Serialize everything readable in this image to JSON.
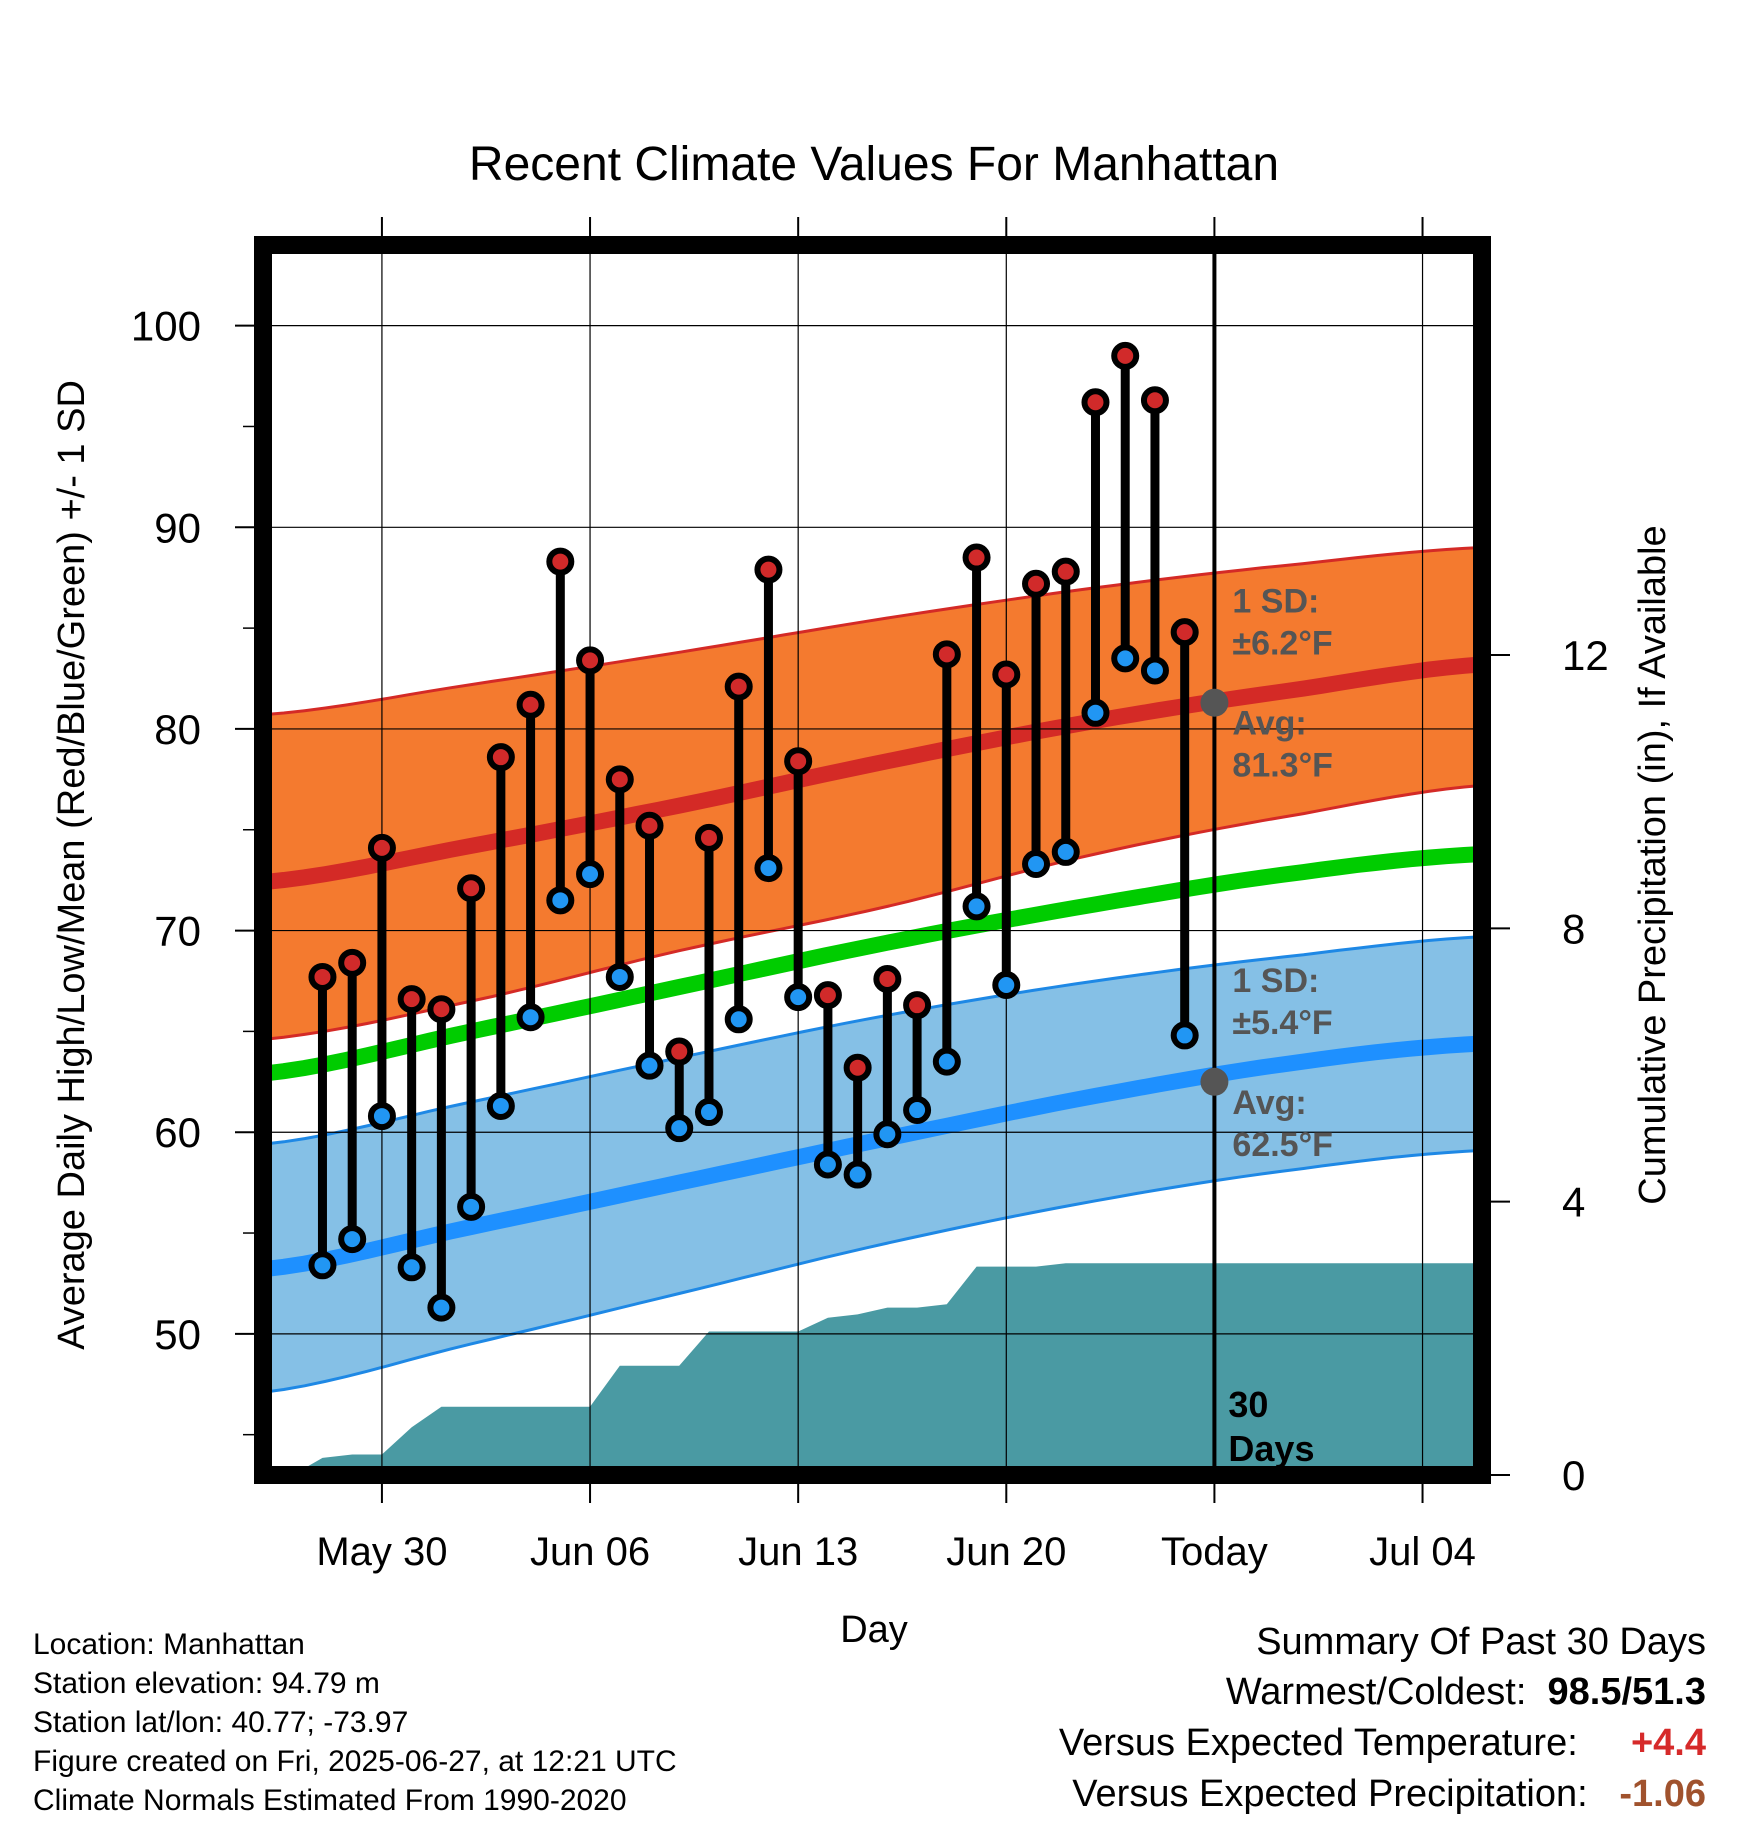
{
  "chart_data": {
    "type": "line",
    "title": "Recent Climate Values For Manhattan",
    "xlabel": "Day",
    "ylabel": "Average Daily High/Low/Mean (Red/Blue/Green) +/- 1 SD",
    "y2label": "Cumulative Precipitation (in), If Available",
    "ylim": [
      43,
      104
    ],
    "y_ticks": [
      50,
      60,
      70,
      80,
      90,
      100
    ],
    "y2lim": [
      0,
      18
    ],
    "y2_ticks": [
      0,
      4,
      8,
      12
    ],
    "xlim": [
      "2025-05-26",
      "2025-07-06"
    ],
    "x_ticks": [
      {
        "date": "2025-05-30",
        "label": "May 30"
      },
      {
        "date": "2025-06-06",
        "label": "Jun 06"
      },
      {
        "date": "2025-06-13",
        "label": "Jun 13"
      },
      {
        "date": "2025-06-20",
        "label": "Jun 20"
      },
      {
        "date": "2025-06-27",
        "label": "Today"
      },
      {
        "date": "2025-07-04",
        "label": "Jul 04"
      }
    ],
    "grid": true,
    "colors": {
      "high_band": "#f47a2f",
      "high_avg": "#d42a26",
      "mean": "#00cc00",
      "low_band": "#85c0e6",
      "low_avg": "#1e90ff",
      "band_edge_low": "#1e88e5",
      "precip": "#4a9aa3",
      "high_dot": "#d12a2a",
      "low_dot": "#2196f3",
      "today_dot": "#555555",
      "annot_text": "#555555",
      "plus_color": "#d62a2a",
      "minus_color": "#a0522d"
    },
    "dates": [
      "2025-05-28",
      "2025-05-29",
      "2025-05-30",
      "2025-05-31",
      "2025-06-01",
      "2025-06-02",
      "2025-06-03",
      "2025-06-04",
      "2025-06-05",
      "2025-06-06",
      "2025-06-07",
      "2025-06-08",
      "2025-06-09",
      "2025-06-10",
      "2025-06-11",
      "2025-06-12",
      "2025-06-13",
      "2025-06-14",
      "2025-06-15",
      "2025-06-16",
      "2025-06-17",
      "2025-06-18",
      "2025-06-19",
      "2025-06-20",
      "2025-06-21",
      "2025-06-22",
      "2025-06-23",
      "2025-06-24",
      "2025-06-25",
      "2025-06-26"
    ],
    "daily_high": [
      67.7,
      68.4,
      74.1,
      66.6,
      66.1,
      72.1,
      78.6,
      81.2,
      88.3,
      83.4,
      77.5,
      75.2,
      64.0,
      74.6,
      82.1,
      87.9,
      78.4,
      66.8,
      63.2,
      67.6,
      66.3,
      83.7,
      88.5,
      82.7,
      87.2,
      87.8,
      96.2,
      98.5,
      96.3,
      84.8
    ],
    "daily_low": [
      53.4,
      54.7,
      60.8,
      53.3,
      51.3,
      56.3,
      61.3,
      65.7,
      71.5,
      72.8,
      67.7,
      63.3,
      60.2,
      61.0,
      65.6,
      73.1,
      66.7,
      58.4,
      57.9,
      59.9,
      61.1,
      63.5,
      71.2,
      67.3,
      73.3,
      73.9,
      80.8,
      83.5,
      82.9,
      64.8
    ],
    "normal_band_dates": [
      "2025-05-26",
      "2025-06-02",
      "2025-06-09",
      "2025-06-16",
      "2025-06-23",
      "2025-06-30",
      "2025-07-06"
    ],
    "normal_high_avg": [
      72.4,
      74.2,
      76.2,
      78.4,
      80.4,
      82.0,
      83.2
    ],
    "normal_high_sd_upper": [
      80.7,
      82.2,
      83.8,
      85.5,
      87.0,
      88.2,
      89.0
    ],
    "normal_high_sd_lower": [
      64.6,
      66.5,
      69.0,
      71.2,
      73.8,
      75.8,
      77.2
    ],
    "normal_mean": [
      62.9,
      65.0,
      67.2,
      69.4,
      71.3,
      72.9,
      73.8
    ],
    "normal_low_avg": [
      53.2,
      55.3,
      57.5,
      59.7,
      61.8,
      63.5,
      64.4
    ],
    "normal_low_sd_upper": [
      59.4,
      61.5,
      63.7,
      65.8,
      67.5,
      68.8,
      69.7
    ],
    "normal_low_sd_lower": [
      47.1,
      49.5,
      52.0,
      54.5,
      56.6,
      58.2,
      59.1
    ],
    "precip_dates": [
      "2025-05-26",
      "2025-05-27",
      "2025-05-28",
      "2025-05-29",
      "2025-05-30",
      "2025-05-31",
      "2025-06-01",
      "2025-06-02",
      "2025-06-03",
      "2025-06-04",
      "2025-06-05",
      "2025-06-06",
      "2025-06-07",
      "2025-06-08",
      "2025-06-09",
      "2025-06-10",
      "2025-06-11",
      "2025-06-12",
      "2025-06-13",
      "2025-06-14",
      "2025-06-15",
      "2025-06-16",
      "2025-06-17",
      "2025-06-18",
      "2025-06-19",
      "2025-06-20",
      "2025-06-21",
      "2025-06-22",
      "2025-06-23",
      "2025-06-24",
      "2025-06-25",
      "2025-06-26",
      "2025-06-27",
      "2025-06-28",
      "2025-06-29",
      "2025-06-30",
      "2025-07-01",
      "2025-07-02",
      "2025-07-03",
      "2025-07-04",
      "2025-07-05",
      "2025-07-06"
    ],
    "precip_cumulative": [
      0.0,
      0.0,
      0.25,
      0.3,
      0.3,
      0.7,
      1.0,
      1.0,
      1.0,
      1.0,
      1.0,
      1.0,
      1.6,
      1.6,
      1.6,
      2.1,
      2.1,
      2.1,
      2.1,
      2.3,
      2.35,
      2.45,
      2.45,
      2.5,
      3.05,
      3.05,
      3.05,
      3.1,
      3.1,
      3.1,
      3.1,
      3.1,
      3.1,
      3.1,
      3.1,
      3.1,
      3.1,
      3.1,
      3.1,
      3.1,
      3.1,
      3.1
    ],
    "today_date": "2025-06-27",
    "today_high_avg": 81.3,
    "today_low_avg": 62.5,
    "annotations": {
      "high_sd_line1": "1 SD:",
      "high_sd_line2": "±6.2°F",
      "high_avg_line1": "Avg:",
      "high_avg_line2": "81.3°F",
      "low_sd_line1": "1 SD:",
      "low_sd_line2": "±5.4°F",
      "low_avg_line1": "Avg:",
      "low_avg_line2": "62.5°F",
      "days_line1": "30",
      "days_line2": "Days"
    }
  },
  "meta": {
    "location": "Location: Manhattan",
    "elevation": "Station elevation: 94.79 m",
    "latlon": "Station lat/lon: 40.77; -73.97",
    "created": "Figure created on Fri, 2025-06-27, at 12:21 UTC",
    "normals": "Climate Normals Estimated From 1990-2020"
  },
  "summary": {
    "title": "Summary Of Past 30 Days",
    "warmest_label": "Warmest/Coldest:",
    "warmest_value": "98.5/51.3",
    "temp_label": "Versus Expected Temperature:",
    "temp_value": "+4.4",
    "precip_label": "Versus Expected Precipitation:",
    "precip_value": "-1.06"
  }
}
